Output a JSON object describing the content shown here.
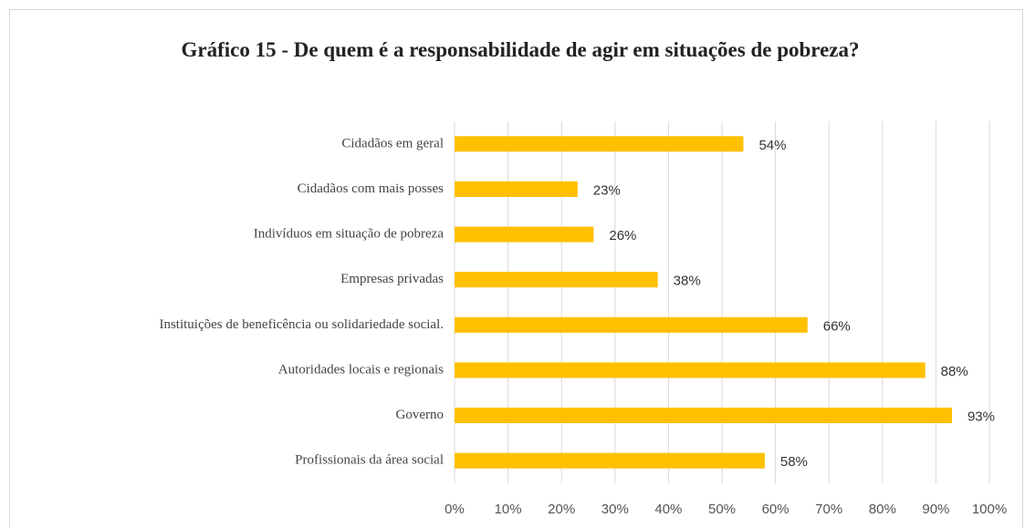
{
  "chart_data": {
    "type": "bar",
    "orientation": "horizontal",
    "title": "Gráfico 15 - De quem é a responsabilidade de agir em situações de pobreza?",
    "categories": [
      "Cidadãos em geral",
      "Cidadãos com mais posses",
      "Indivíduos em situação de pobreza",
      "Empresas privadas",
      "Instituições de beneficência ou solidariedade social.",
      "Autoridades locais e regionais",
      "Governo",
      "Profissionais da área social"
    ],
    "values": [
      54,
      23,
      26,
      38,
      66,
      88,
      93,
      58
    ],
    "value_labels": [
      "54%",
      "23%",
      "26%",
      "38%",
      "66%",
      "88%",
      "93%",
      "58%"
    ],
    "color": "#ffc000",
    "xlim": [
      0,
      100
    ],
    "xticks": [
      {
        "value": 0,
        "label": "0%"
      },
      {
        "value": 10,
        "label": "10%"
      },
      {
        "value": 20,
        "label": "20%"
      },
      {
        "value": 30,
        "label": "30%"
      },
      {
        "value": 40,
        "label": "40%"
      },
      {
        "value": 50,
        "label": "50%"
      },
      {
        "value": 60,
        "label": "60%"
      },
      {
        "value": 70,
        "label": "70%"
      },
      {
        "value": 80,
        "label": "80%"
      },
      {
        "value": 90,
        "label": "90%"
      },
      {
        "value": 100,
        "label": "100%"
      }
    ],
    "grid": true
  }
}
